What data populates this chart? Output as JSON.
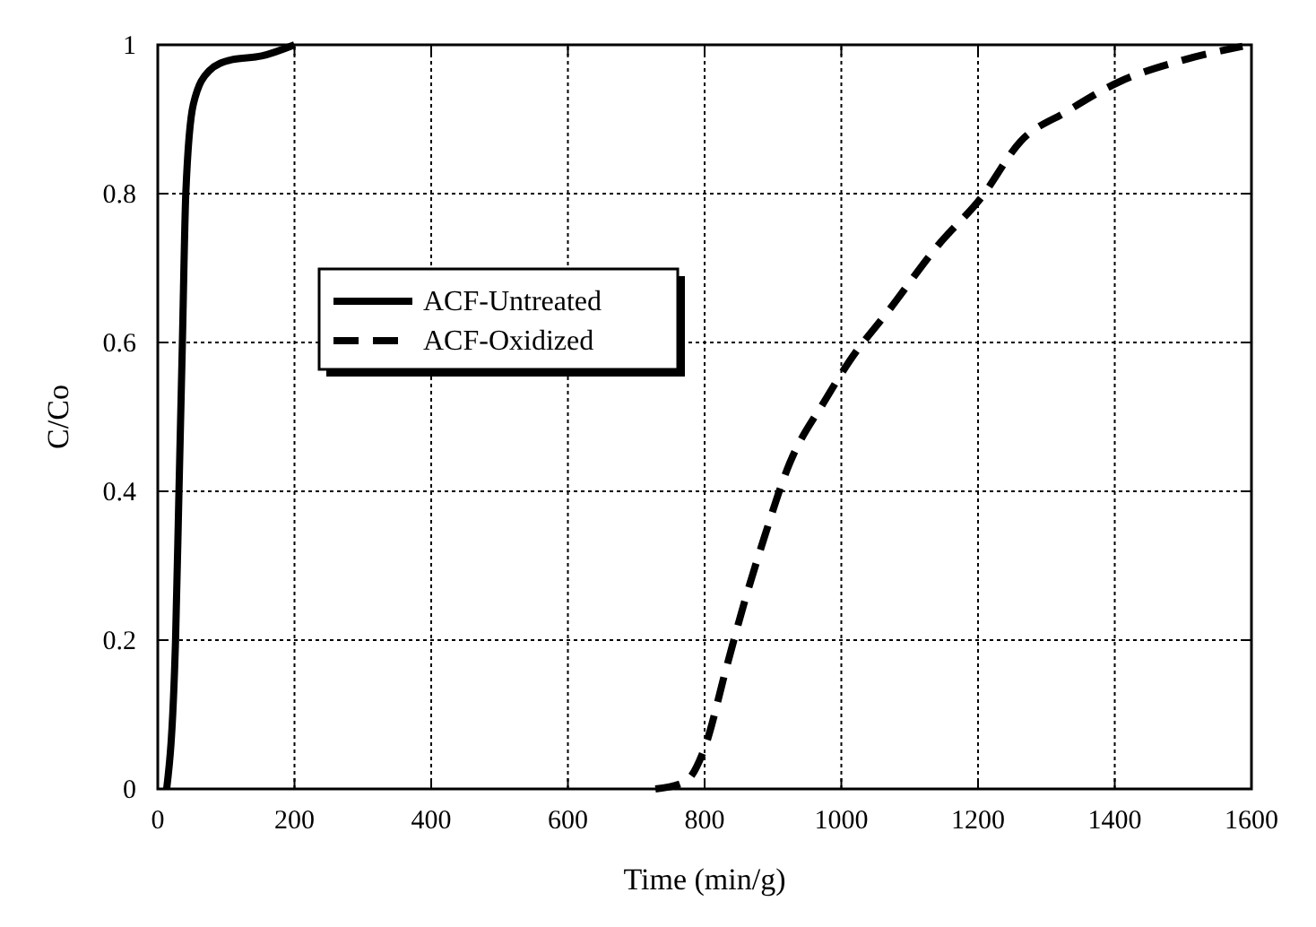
{
  "chart_data": {
    "type": "line",
    "xlabel": "Time (min/g)",
    "ylabel": "C/Co",
    "xlim": [
      0,
      1600
    ],
    "xticks": [
      0,
      200,
      400,
      600,
      800,
      1000,
      1200,
      1400,
      1600
    ],
    "ylim": [
      0,
      1
    ],
    "yticks": [
      0,
      0.2,
      0.4,
      0.6,
      0.8,
      1
    ],
    "grid": true,
    "legend": "top left",
    "series": [
      {
        "name": "ACF-Untreated",
        "color": "#000000",
        "line_style": "solid",
        "x": [
          13,
          26,
          31,
          36,
          41,
          52,
          75,
          108,
          152,
          200
        ],
        "values": [
          0,
          0.2,
          0.4,
          0.6,
          0.8,
          0.92,
          0.965,
          0.98,
          0.985,
          1
        ]
      },
      {
        "name": "ACF-Oxidized",
        "color": "#000000",
        "line_style": "dashed",
        "x": [
          728,
          772,
          800,
          831,
          857,
          888,
          921,
          978,
          1012,
          1071,
          1141,
          1205,
          1262,
          1329,
          1406,
          1502,
          1587
        ],
        "values": [
          0,
          0.01,
          0.055,
          0.16,
          0.247,
          0.34,
          0.43,
          0.525,
          0.575,
          0.645,
          0.73,
          0.795,
          0.87,
          0.91,
          0.95,
          0.98,
          0.998
        ]
      }
    ]
  }
}
